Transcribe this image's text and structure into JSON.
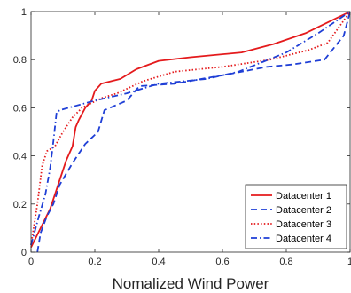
{
  "chart_data": {
    "type": "line",
    "title": "",
    "xlabel": "Nomalized Wind Power",
    "ylabel": "",
    "xlim": [
      0,
      1
    ],
    "ylim": [
      0,
      1
    ],
    "xticks": [
      0,
      0.2,
      0.4,
      0.6,
      0.8,
      1
    ],
    "yticks": [
      0,
      0.2,
      0.4,
      0.6,
      0.8,
      1
    ],
    "xtick_labels": [
      "0",
      "0.2",
      "0.4",
      "0.6",
      "0.8",
      "1"
    ],
    "ytick_labels": [
      "0",
      "0.2",
      "0.4",
      "0.6",
      "0.8",
      "1"
    ],
    "grid": false,
    "legend_position": "bottom-right",
    "series": [
      {
        "name": "Datacenter 1",
        "color": "#e41a1c",
        "dash": "solid",
        "x": [
          0,
          0.03,
          0.06,
          0.09,
          0.11,
          0.13,
          0.14,
          0.15,
          0.17,
          0.19,
          0.2,
          0.22,
          0.28,
          0.33,
          0.4,
          0.5,
          0.66,
          0.76,
          0.86,
          1.0
        ],
        "y": [
          0.02,
          0.1,
          0.18,
          0.3,
          0.38,
          0.44,
          0.52,
          0.55,
          0.6,
          0.63,
          0.67,
          0.7,
          0.72,
          0.76,
          0.795,
          0.81,
          0.83,
          0.865,
          0.91,
          1.0
        ]
      },
      {
        "name": "Datacenter 2",
        "color": "#1f3fd6",
        "dash": "dashed",
        "x": [
          0.02,
          0.03,
          0.05,
          0.07,
          0.09,
          0.13,
          0.17,
          0.21,
          0.23,
          0.3,
          0.34,
          0.45,
          0.62,
          0.74,
          0.82,
          0.92,
          0.98,
          1.0
        ],
        "y": [
          0.0,
          0.08,
          0.15,
          0.2,
          0.28,
          0.37,
          0.45,
          0.5,
          0.59,
          0.63,
          0.69,
          0.7,
          0.74,
          0.77,
          0.78,
          0.8,
          0.9,
          1.0
        ]
      },
      {
        "name": "Datacenter 3",
        "color": "#e41a1c",
        "dash": "dotted",
        "x": [
          0,
          0.02,
          0.035,
          0.05,
          0.075,
          0.1,
          0.13,
          0.16,
          0.19,
          0.22,
          0.27,
          0.35,
          0.45,
          0.6,
          0.75,
          0.87,
          0.93,
          1.0
        ],
        "y": [
          0.03,
          0.2,
          0.36,
          0.42,
          0.44,
          0.5,
          0.56,
          0.6,
          0.62,
          0.64,
          0.66,
          0.71,
          0.75,
          0.77,
          0.8,
          0.84,
          0.87,
          1.0
        ]
      },
      {
        "name": "Datacenter 4",
        "color": "#1f3fd6",
        "dash": "dashdot",
        "x": [
          0,
          0.025,
          0.045,
          0.06,
          0.07,
          0.08,
          0.09,
          0.2,
          0.3,
          0.4,
          0.55,
          0.65,
          0.8,
          0.9,
          1.0
        ],
        "y": [
          0.03,
          0.15,
          0.24,
          0.35,
          0.46,
          0.58,
          0.59,
          0.63,
          0.66,
          0.7,
          0.72,
          0.75,
          0.83,
          0.91,
          1.0
        ]
      }
    ]
  }
}
